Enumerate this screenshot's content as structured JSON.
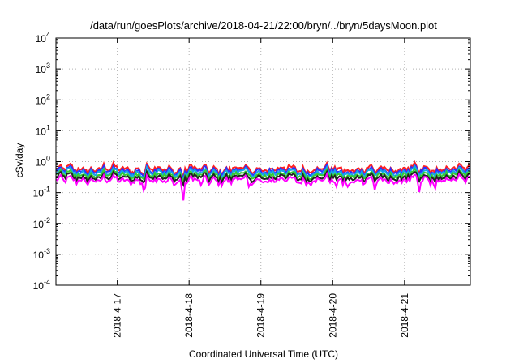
{
  "chart_data": {
    "type": "area",
    "title": "/data/run/goesPlots/archive/2018-04-21/22:00/bryn/../bryn/5daysMoon.plot",
    "xlabel": "Coordinated Universal Time (UTC)",
    "ylabel": "cSv/day",
    "yscale": "log",
    "ylim": [
      0.0001,
      10000
    ],
    "y_tick_labels": [
      {
        "base": "10",
        "exp": "-4"
      },
      {
        "base": "10",
        "exp": "-3"
      },
      {
        "base": "10",
        "exp": "-2"
      },
      {
        "base": "10",
        "exp": "-1"
      },
      {
        "base": "10",
        "exp": "0"
      },
      {
        "base": "10",
        "exp": "1"
      },
      {
        "base": "10",
        "exp": "2"
      },
      {
        "base": "10",
        "exp": "3"
      },
      {
        "base": "10",
        "exp": "4"
      }
    ],
    "xlim": [
      "2018-04-16T03:30",
      "2018-04-21T22:00"
    ],
    "x_ticks": [
      "2018-4-17",
      "2018-4-18",
      "2018-4-19",
      "2018-4-20",
      "2018-4-21"
    ],
    "grid": true,
    "legend": "none",
    "series": [
      {
        "color": "#ff2020",
        "level": 0.58,
        "dips": []
      },
      {
        "color": "#2d2dff",
        "level": 0.5,
        "dips": []
      },
      {
        "color": "#16a6e8",
        "level": 0.44,
        "dips": []
      },
      {
        "color": "#33cc33",
        "level": 0.37,
        "dips": []
      },
      {
        "color": "#222222",
        "level": 0.31,
        "dips": []
      },
      {
        "color": "#ff00ff",
        "level": 0.25,
        "dips": [
          {
            "x": "2018-04-17T09:00",
            "y": 0.11
          },
          {
            "x": "2018-04-17T22:00",
            "y": 0.05
          },
          {
            "x": "2018-04-18T04:00",
            "y": 0.15
          },
          {
            "x": "2018-04-18T20:00",
            "y": 0.11
          },
          {
            "x": "2018-04-20T01:00",
            "y": 0.12
          },
          {
            "x": "2018-04-20T05:00",
            "y": 0.14
          },
          {
            "x": "2018-04-20T14:00",
            "y": 0.11
          },
          {
            "x": "2018-04-21T05:00",
            "y": 0.1
          },
          {
            "x": "2018-04-21T10:00",
            "y": 0.16
          }
        ]
      }
    ]
  }
}
